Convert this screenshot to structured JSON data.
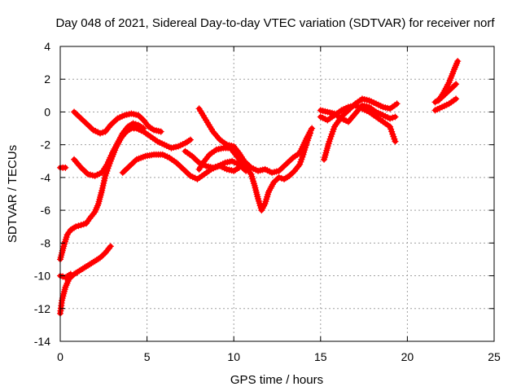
{
  "chart_data": {
    "type": "scatter",
    "title": "Day 048 of 2021, Sidereal Day-to-day VTEC variation (SDTVAR) for receiver norf",
    "xlabel": "GPS time / hours",
    "ylabel": "SDTVAR / TECUs",
    "xlim": [
      0,
      25
    ],
    "ylim": [
      -14,
      4
    ],
    "xticks": [
      0,
      5,
      10,
      15,
      20,
      25
    ],
    "yticks": [
      -14,
      -12,
      -10,
      -8,
      -6,
      -4,
      -2,
      0,
      2,
      4
    ],
    "grid": true,
    "marker": "plus",
    "color": "#ff0000",
    "series": [
      {
        "points": [
          [
            0.0,
            -3.4
          ],
          [
            0.3,
            -3.4
          ]
        ]
      },
      {
        "points": [
          [
            0.0,
            -9.0
          ],
          [
            0.2,
            -8.2
          ],
          [
            0.4,
            -7.5
          ],
          [
            0.6,
            -7.2
          ],
          [
            0.9,
            -7.0
          ],
          [
            1.2,
            -6.9
          ],
          [
            1.5,
            -6.8
          ],
          [
            1.7,
            -6.5
          ],
          [
            2.0,
            -6.1
          ],
          [
            2.2,
            -5.6
          ],
          [
            2.4,
            -4.8
          ],
          [
            2.6,
            -3.9
          ],
          [
            2.9,
            -3.0
          ],
          [
            3.2,
            -2.2
          ],
          [
            3.5,
            -1.6
          ],
          [
            3.8,
            -1.2
          ],
          [
            4.1,
            -1.0
          ],
          [
            4.4,
            -1.0
          ],
          [
            4.8,
            -1.2
          ],
          [
            5.2,
            -1.5
          ],
          [
            5.6,
            -1.8
          ],
          [
            6.0,
            -2.0
          ],
          [
            6.4,
            -2.2
          ],
          [
            6.8,
            -2.1
          ],
          [
            7.2,
            -1.9
          ],
          [
            7.5,
            -1.7
          ]
        ]
      },
      {
        "points": [
          [
            0.0,
            -12.3
          ],
          [
            0.1,
            -11.5
          ],
          [
            0.3,
            -10.7
          ],
          [
            0.5,
            -10.2
          ],
          [
            0.8,
            -9.9
          ],
          [
            1.1,
            -9.7
          ],
          [
            1.4,
            -9.5
          ],
          [
            1.7,
            -9.3
          ],
          [
            2.0,
            -9.1
          ],
          [
            2.3,
            -8.9
          ],
          [
            2.6,
            -8.6
          ],
          [
            2.9,
            -8.2
          ]
        ]
      },
      {
        "points": [
          [
            0.0,
            -10.0
          ],
          [
            0.3,
            -10.1
          ],
          [
            0.6,
            -9.9
          ]
        ]
      },
      {
        "points": [
          [
            0.8,
            0.0
          ],
          [
            1.1,
            -0.3
          ],
          [
            1.5,
            -0.7
          ],
          [
            1.9,
            -1.1
          ],
          [
            2.3,
            -1.3
          ],
          [
            2.6,
            -1.2
          ],
          [
            2.9,
            -0.8
          ],
          [
            3.3,
            -0.4
          ],
          [
            3.7,
            -0.2
          ],
          [
            4.1,
            -0.1
          ],
          [
            4.5,
            -0.2
          ],
          [
            4.8,
            -0.5
          ],
          [
            5.1,
            -0.9
          ],
          [
            5.4,
            -1.1
          ],
          [
            5.8,
            -1.2
          ]
        ]
      },
      {
        "points": [
          [
            0.8,
            -2.9
          ],
          [
            1.2,
            -3.4
          ],
          [
            1.6,
            -3.8
          ],
          [
            2.0,
            -3.9
          ],
          [
            2.4,
            -3.7
          ],
          [
            2.7,
            -3.2
          ],
          [
            3.0,
            -2.5
          ],
          [
            3.3,
            -1.9
          ],
          [
            3.6,
            -1.3
          ],
          [
            3.9,
            -0.9
          ],
          [
            4.2,
            -0.7
          ],
          [
            4.5,
            -0.8
          ],
          [
            4.8,
            -1.0
          ]
        ]
      },
      {
        "points": [
          [
            3.6,
            -3.7
          ],
          [
            4.0,
            -3.3
          ],
          [
            4.4,
            -2.9
          ],
          [
            4.9,
            -2.7
          ],
          [
            5.4,
            -2.6
          ],
          [
            5.9,
            -2.6
          ],
          [
            6.3,
            -2.8
          ],
          [
            6.7,
            -3.1
          ],
          [
            7.1,
            -3.5
          ],
          [
            7.5,
            -3.9
          ],
          [
            7.9,
            -4.1
          ],
          [
            8.3,
            -3.8
          ],
          [
            8.7,
            -3.5
          ],
          [
            9.1,
            -3.3
          ],
          [
            9.5,
            -3.1
          ],
          [
            9.9,
            -3.0
          ],
          [
            10.3,
            -3.2
          ],
          [
            10.7,
            -3.6
          ]
        ]
      },
      {
        "points": [
          [
            8.0,
            -3.5
          ],
          [
            8.3,
            -3.0
          ],
          [
            8.6,
            -2.6
          ],
          [
            9.0,
            -2.3
          ],
          [
            9.4,
            -2.2
          ],
          [
            9.8,
            -2.2
          ],
          [
            10.1,
            -2.6
          ],
          [
            10.4,
            -3.0
          ],
          [
            10.7,
            -3.4
          ],
          [
            11.0,
            -3.8
          ],
          [
            11.2,
            -4.5
          ],
          [
            11.4,
            -5.3
          ],
          [
            11.6,
            -6.0
          ],
          [
            11.8,
            -5.6
          ],
          [
            12.0,
            -4.9
          ],
          [
            12.3,
            -4.3
          ],
          [
            12.6,
            -4.0
          ],
          [
            12.9,
            -4.1
          ],
          [
            13.2,
            -3.9
          ],
          [
            13.5,
            -3.6
          ],
          [
            13.8,
            -3.2
          ],
          [
            14.0,
            -2.6
          ],
          [
            14.2,
            -1.9
          ],
          [
            14.4,
            -1.3
          ]
        ]
      },
      {
        "points": [
          [
            8.0,
            0.2
          ],
          [
            8.4,
            -0.5
          ],
          [
            8.8,
            -1.2
          ],
          [
            9.2,
            -1.7
          ],
          [
            9.6,
            -2.0
          ],
          [
            10.0,
            -2.1
          ],
          [
            10.3,
            -2.5
          ],
          [
            10.6,
            -3.0
          ],
          [
            11.0,
            -3.4
          ],
          [
            11.4,
            -3.6
          ],
          [
            11.8,
            -3.5
          ],
          [
            12.2,
            -3.7
          ],
          [
            12.6,
            -3.6
          ],
          [
            13.0,
            -3.2
          ],
          [
            13.4,
            -2.8
          ],
          [
            13.8,
            -2.5
          ],
          [
            14.2,
            -1.6
          ],
          [
            14.5,
            -1.0
          ]
        ]
      },
      {
        "points": [
          [
            7.2,
            -2.4
          ],
          [
            7.6,
            -2.7
          ],
          [
            8.0,
            -3.1
          ],
          [
            8.4,
            -3.3
          ],
          [
            8.8,
            -3.4
          ],
          [
            9.2,
            -3.3
          ],
          [
            9.6,
            -3.5
          ],
          [
            10.0,
            -3.6
          ],
          [
            10.3,
            -3.4
          ]
        ]
      },
      {
        "points": [
          [
            15.0,
            -0.3
          ],
          [
            15.4,
            -0.5
          ],
          [
            15.8,
            -0.2
          ],
          [
            16.2,
            0.1
          ],
          [
            16.6,
            0.3
          ],
          [
            17.0,
            0.4
          ],
          [
            17.4,
            0.2
          ],
          [
            17.8,
            0.0
          ],
          [
            18.2,
            -0.3
          ],
          [
            18.6,
            -0.6
          ],
          [
            19.0,
            -0.9
          ],
          [
            19.3,
            -1.8
          ]
        ]
      },
      {
        "points": [
          [
            15.2,
            -2.9
          ],
          [
            15.5,
            -1.8
          ],
          [
            15.8,
            -0.9
          ],
          [
            16.2,
            -0.3
          ],
          [
            16.6,
            0.1
          ],
          [
            17.0,
            0.5
          ],
          [
            17.4,
            0.8
          ],
          [
            17.8,
            0.7
          ],
          [
            18.2,
            0.5
          ],
          [
            18.6,
            0.3
          ],
          [
            19.0,
            0.2
          ],
          [
            19.4,
            0.5
          ]
        ]
      },
      {
        "points": [
          [
            15.0,
            0.1
          ],
          [
            15.4,
            0.0
          ],
          [
            15.8,
            -0.1
          ],
          [
            16.2,
            -0.4
          ],
          [
            16.6,
            -0.6
          ],
          [
            17.0,
            -0.1
          ],
          [
            17.4,
            0.4
          ],
          [
            17.8,
            0.3
          ],
          [
            18.2,
            0.0
          ],
          [
            18.6,
            -0.2
          ],
          [
            19.0,
            -0.4
          ],
          [
            19.3,
            -0.3
          ]
        ]
      },
      {
        "points": [
          [
            21.6,
            0.1
          ],
          [
            22.0,
            0.3
          ],
          [
            22.4,
            0.5
          ],
          [
            22.8,
            0.8
          ]
        ]
      },
      {
        "points": [
          [
            21.6,
            0.6
          ],
          [
            22.0,
            0.9
          ],
          [
            22.4,
            1.3
          ],
          [
            22.8,
            1.7
          ]
        ]
      },
      {
        "points": [
          [
            21.8,
            0.7
          ],
          [
            22.1,
            1.2
          ],
          [
            22.4,
            1.8
          ],
          [
            22.7,
            2.6
          ],
          [
            22.9,
            3.1
          ]
        ]
      }
    ]
  }
}
